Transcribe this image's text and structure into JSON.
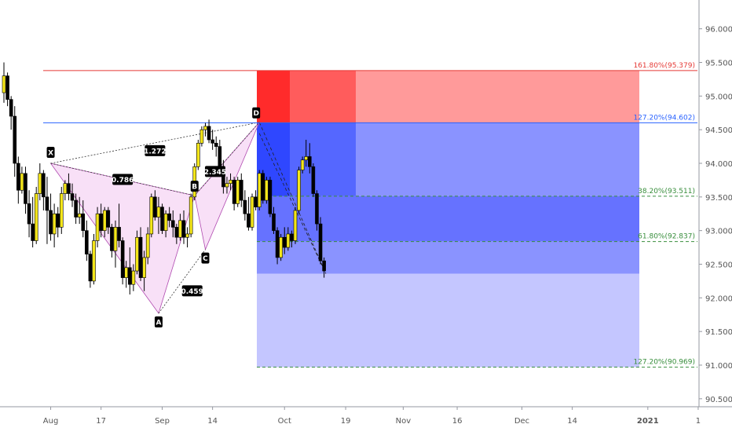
{
  "chart_data": {
    "type": "candlestick",
    "y_axis": {
      "ticks": [
        "96.000",
        "95.500",
        "95.000",
        "94.500",
        "94.000",
        "93.500",
        "93.000",
        "92.500",
        "92.000",
        "91.500",
        "91.000",
        "90.500"
      ],
      "range": [
        90.45,
        96.1
      ],
      "side": "right"
    },
    "x_axis": {
      "ticks": [
        {
          "label": "Aug",
          "bar": 13
        },
        {
          "label": "17",
          "bar": 27
        },
        {
          "label": "Sep",
          "bar": 44
        },
        {
          "label": "14",
          "bar": 58
        },
        {
          "label": "Oct",
          "bar": 78
        },
        {
          "label": "19",
          "bar": 95
        },
        {
          "label": "Nov",
          "bar": 111
        },
        {
          "label": "16",
          "bar": 126
        },
        {
          "label": "Dec",
          "bar": 144
        },
        {
          "label": "14",
          "bar": 158
        },
        {
          "label": "2021",
          "bar": 179
        },
        {
          "label": "1",
          "bar": 193
        }
      ]
    },
    "candles": [
      [
        95.05,
        95.5,
        94.9,
        95.3
      ],
      [
        95.3,
        95.35,
        94.85,
        94.95
      ],
      [
        94.95,
        95.0,
        94.5,
        94.7
      ],
      [
        94.7,
        94.85,
        93.8,
        94.0
      ],
      [
        94.0,
        94.1,
        93.4,
        93.6
      ],
      [
        93.6,
        93.95,
        93.55,
        93.85
      ],
      [
        93.85,
        93.95,
        93.25,
        93.4
      ],
      [
        93.4,
        93.6,
        92.9,
        93.1
      ],
      [
        93.1,
        93.5,
        92.75,
        92.85
      ],
      [
        92.85,
        93.65,
        92.8,
        93.55
      ],
      [
        93.55,
        94.0,
        93.45,
        93.85
      ],
      [
        93.85,
        93.9,
        93.3,
        93.5
      ],
      [
        93.5,
        93.8,
        92.8,
        93.3
      ],
      [
        93.3,
        93.55,
        92.85,
        92.95
      ],
      [
        92.95,
        93.4,
        92.75,
        93.25
      ],
      [
        93.25,
        93.35,
        92.9,
        93.05
      ],
      [
        93.05,
        93.65,
        92.95,
        93.55
      ],
      [
        93.55,
        93.75,
        93.45,
        93.7
      ],
      [
        93.7,
        93.85,
        93.45,
        93.55
      ],
      [
        93.55,
        93.7,
        93.35,
        93.45
      ],
      [
        93.45,
        93.55,
        93.1,
        93.2
      ],
      [
        93.2,
        93.5,
        93.1,
        93.25
      ],
      [
        93.25,
        93.45,
        92.9,
        93.0
      ],
      [
        93.0,
        93.15,
        92.55,
        92.65
      ],
      [
        92.65,
        92.7,
        92.15,
        92.25
      ],
      [
        92.25,
        92.95,
        92.2,
        92.85
      ],
      [
        92.85,
        93.35,
        92.75,
        93.25
      ],
      [
        93.25,
        93.4,
        92.9,
        93.0
      ],
      [
        93.0,
        93.35,
        92.9,
        93.3
      ],
      [
        93.3,
        93.35,
        92.95,
        93.05
      ],
      [
        93.05,
        93.1,
        92.6,
        92.7
      ],
      [
        92.7,
        93.15,
        92.45,
        93.05
      ],
      [
        93.05,
        93.4,
        92.75,
        92.85
      ],
      [
        92.85,
        92.9,
        92.2,
        92.3
      ],
      [
        92.3,
        92.55,
        92.15,
        92.45
      ],
      [
        92.45,
        92.75,
        92.05,
        92.2
      ],
      [
        92.2,
        92.5,
        92.1,
        92.4
      ],
      [
        92.4,
        93.0,
        92.35,
        92.9
      ],
      [
        92.9,
        93.05,
        92.25,
        92.3
      ],
      [
        92.3,
        92.7,
        92.1,
        92.6
      ],
      [
        92.6,
        93.05,
        92.5,
        92.95
      ],
      [
        92.95,
        93.55,
        92.9,
        93.5
      ],
      [
        93.5,
        93.6,
        93.15,
        93.2
      ],
      [
        93.2,
        93.5,
        92.95,
        93.35
      ],
      [
        93.35,
        93.4,
        92.95,
        93.0
      ],
      [
        93.0,
        93.3,
        92.9,
        93.25
      ],
      [
        93.25,
        93.35,
        93.05,
        93.15
      ],
      [
        93.15,
        93.3,
        92.9,
        93.05
      ],
      [
        93.05,
        93.1,
        92.8,
        92.9
      ],
      [
        92.9,
        93.25,
        92.85,
        93.15
      ],
      [
        93.15,
        93.3,
        92.8,
        92.9
      ],
      [
        92.9,
        93.05,
        92.75,
        92.95
      ],
      [
        92.95,
        93.55,
        92.9,
        93.5
      ],
      [
        93.5,
        94.0,
        93.45,
        93.95
      ],
      [
        93.95,
        94.35,
        93.9,
        94.3
      ],
      [
        94.3,
        94.55,
        94.25,
        94.5
      ],
      [
        94.5,
        94.6,
        94.4,
        94.55
      ],
      [
        94.55,
        94.65,
        94.3,
        94.35
      ],
      [
        94.35,
        94.5,
        94.2,
        94.3
      ],
      [
        94.3,
        94.4,
        94.1,
        94.25
      ],
      [
        94.25,
        94.35,
        93.8,
        93.9
      ],
      [
        93.9,
        94.05,
        93.55,
        93.65
      ],
      [
        93.65,
        93.8,
        93.55,
        93.7
      ],
      [
        93.7,
        93.85,
        93.6,
        93.75
      ],
      [
        93.75,
        93.8,
        93.3,
        93.4
      ],
      [
        93.4,
        93.8,
        93.35,
        93.75
      ],
      [
        93.75,
        93.85,
        93.35,
        93.45
      ],
      [
        93.45,
        93.6,
        93.15,
        93.25
      ],
      [
        93.25,
        93.5,
        93.0,
        93.05
      ],
      [
        93.05,
        93.55,
        93.0,
        93.5
      ],
      [
        93.5,
        93.6,
        93.3,
        93.35
      ],
      [
        93.35,
        93.9,
        93.3,
        93.85
      ],
      [
        93.85,
        93.9,
        93.4,
        93.45
      ],
      [
        93.45,
        93.8,
        93.4,
        93.75
      ],
      [
        93.75,
        93.8,
        93.2,
        93.25
      ],
      [
        93.25,
        93.35,
        92.95,
        93.0
      ],
      [
        93.0,
        93.05,
        92.5,
        92.6
      ],
      [
        92.6,
        92.95,
        92.55,
        92.9
      ],
      [
        92.9,
        93.05,
        92.65,
        92.75
      ],
      [
        92.75,
        93.05,
        92.7,
        92.95
      ],
      [
        92.95,
        93.0,
        92.75,
        92.85
      ],
      [
        92.85,
        93.35,
        92.8,
        93.3
      ],
      [
        93.3,
        93.95,
        93.25,
        93.9
      ],
      [
        93.9,
        94.1,
        93.85,
        94.05
      ],
      [
        94.05,
        94.35,
        93.95,
        94.1
      ],
      [
        94.1,
        94.3,
        93.85,
        93.95
      ],
      [
        93.95,
        94.0,
        93.5,
        93.55
      ],
      [
        93.55,
        93.6,
        93.0,
        93.1
      ],
      [
        93.1,
        93.2,
        92.5,
        92.55
      ],
      [
        92.55,
        92.6,
        92.3,
        92.4
      ]
    ],
    "harmonic_pattern": {
      "points": [
        {
          "label": "X",
          "bar": 13,
          "price": 94.0
        },
        {
          "label": "A",
          "bar": 43,
          "price": 91.77
        },
        {
          "label": "B",
          "bar": 53,
          "price": 93.52
        },
        {
          "label": "C",
          "bar": 56,
          "price": 92.72
        },
        {
          "label": "D",
          "bar": 71,
          "price": 94.61
        }
      ],
      "ratios": [
        {
          "label": "1.272",
          "from": "X",
          "to": "D"
        },
        {
          "label": "0.786",
          "from": "X",
          "to": "B"
        },
        {
          "label": "2.345",
          "from": "B",
          "to": "D"
        },
        {
          "label": "0.459",
          "from": "A",
          "to": "C"
        }
      ]
    },
    "levels": [
      {
        "label": "161.80%(95.379)",
        "price": 95.379,
        "color": "#e53935",
        "style": "solid",
        "start_bar": 11
      },
      {
        "label": "127.20%(94.602)",
        "price": 94.602,
        "color": "#2962ff",
        "style": "solid",
        "start_bar": 11
      },
      {
        "label": "38.20%(93.511)",
        "price": 93.511,
        "color": "#388e3c",
        "style": "dashed",
        "start_bar": 71
      },
      {
        "label": "61.80%(92.837)",
        "price": 92.837,
        "color": "#388e3c",
        "style": "dashed",
        "start_bar": 71
      },
      {
        "label": "127.20%(90.969)",
        "price": 90.969,
        "color": "#388e3c",
        "style": "dashed",
        "start_bar": 71
      }
    ],
    "colors": {
      "up_body": "#f4e61a",
      "down_body": "#000000",
      "pattern_fill": "#f3c6f0",
      "stop_zone": [
        "#ff2b2b",
        "#ff5c5c",
        "#ff9a9a"
      ],
      "target_zone": [
        "#2f47ff",
        "#5567ff",
        "#8a93ff"
      ],
      "light_target": "#c4c6ff"
    }
  }
}
